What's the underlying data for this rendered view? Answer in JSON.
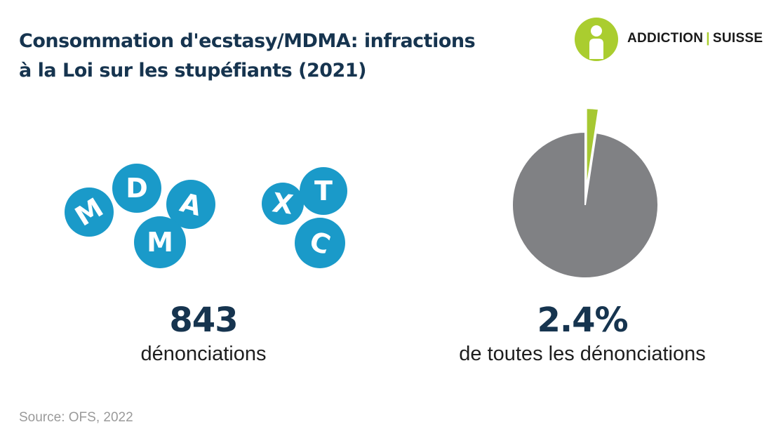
{
  "title": {
    "line1": "Consommation d'ecstasy/MDMA: infractions",
    "line2": "à la Loi sur les stupéfiants (2021)"
  },
  "logo": {
    "brand_left": "ADDICTION",
    "separator": "|",
    "brand_right": "SUISSE",
    "icon": "person-icon",
    "accent_color": "#aacd2f"
  },
  "pills": {
    "color": "#1a9ac9",
    "letters": [
      "M",
      "D",
      "A",
      "M",
      "X",
      "T",
      "C"
    ]
  },
  "stats": {
    "left": {
      "value": "843",
      "label": "dénonciations"
    },
    "right": {
      "value": "2.4%",
      "label": "de toutes les dénonciations"
    }
  },
  "chart_data": {
    "type": "pie",
    "title": "",
    "slices": [
      {
        "value": 2.4,
        "color": "#a6c832"
      },
      {
        "value": 97.6,
        "color": "#808184"
      }
    ],
    "highlighted_slice": 0,
    "highlight_exploded": true
  },
  "source": "Source: OFS, 2022"
}
